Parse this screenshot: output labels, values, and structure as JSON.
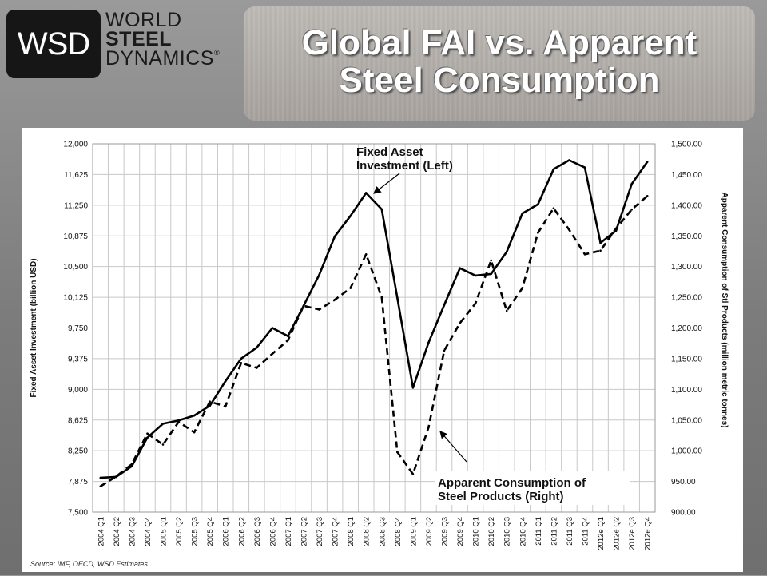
{
  "logo": {
    "mark": "WSD",
    "line1": "WORLD",
    "line2": "STEEL",
    "line3": "DYNAMICS",
    "reg": "®"
  },
  "title": {
    "line1": "Global FAI vs. Apparent",
    "line2": "Steel Consumption"
  },
  "chart_data": {
    "type": "line",
    "categories": [
      "2004 Q1",
      "2004 Q2",
      "2004 Q3",
      "2004 Q4",
      "2005 Q1",
      "2005 Q2",
      "2005 Q3",
      "2005 Q4",
      "2006 Q1",
      "2006 Q2",
      "2006 Q3",
      "2006 Q4",
      "2007 Q1",
      "2007 Q2",
      "2007 Q3",
      "2007 Q4",
      "2008 Q1",
      "2008 Q2",
      "2008 Q3",
      "2008 Q4",
      "2009 Q1",
      "2009 Q2",
      "2009 Q3",
      "2009 Q4",
      "2010 Q1",
      "2010 Q2",
      "2010 Q3",
      "2010 Q4",
      "2011 Q1",
      "2011 Q2",
      "2011 Q3",
      "2011 Q4",
      "2012e Q1",
      "2012e Q2",
      "2012e Q3",
      "2012e Q4"
    ],
    "series": [
      {
        "name": "Fixed Asset Investment (Left)",
        "axis": "left",
        "style": "solid",
        "values": [
          7920,
          7930,
          8060,
          8410,
          8580,
          8620,
          8680,
          8800,
          9100,
          9375,
          9510,
          9750,
          9650,
          10020,
          10400,
          10870,
          11120,
          11400,
          11200,
          10120,
          9020,
          9570,
          10030,
          10480,
          10390,
          10410,
          10680,
          11150,
          11260,
          11690,
          11800,
          11710,
          10790,
          10940,
          11510,
          11780
        ]
      },
      {
        "name": "Apparent Consumption of Steel Products (Right)",
        "axis": "right",
        "style": "dashed",
        "values": [
          942,
          958,
          978,
          1028,
          1010,
          1047,
          1030,
          1080,
          1072,
          1143,
          1135,
          1158,
          1180,
          1236,
          1230,
          1246,
          1265,
          1320,
          1250,
          998,
          962,
          1038,
          1163,
          1208,
          1240,
          1310,
          1228,
          1265,
          1355,
          1395,
          1360,
          1320,
          1326,
          1362,
          1393,
          1415
        ]
      }
    ],
    "left_axis": {
      "label": "Fixed Asset Investment (billion USD)",
      "ylim": [
        7500,
        12000
      ],
      "ticks": [
        "12,000",
        "11,625",
        "11,250",
        "10,875",
        "10,500",
        "10,125",
        "9,750",
        "9,375",
        "9,000",
        "8,625",
        "8,250",
        "7,875",
        "7,500"
      ]
    },
    "right_axis": {
      "label": "Apparent Consumption of Stl Products (million metric tonnes)",
      "ylim": [
        900,
        1500
      ],
      "ticks": [
        "1,500.00",
        "1,450.00",
        "1,400.00",
        "1,350.00",
        "1,300.00",
        "1,250.00",
        "1,200.00",
        "1,150.00",
        "1,100.00",
        "1,050.00",
        "1,000.00",
        "950.00",
        "900.00"
      ]
    },
    "annotations": {
      "fai_line1": "Fixed Asset",
      "fai_line2": "Investment (Left)",
      "cons_line1": "Apparent Consumption of",
      "cons_line2": "Steel Products (Right)"
    },
    "grid": true,
    "source": "Source: IMF, OECD, WSD Estimates"
  }
}
